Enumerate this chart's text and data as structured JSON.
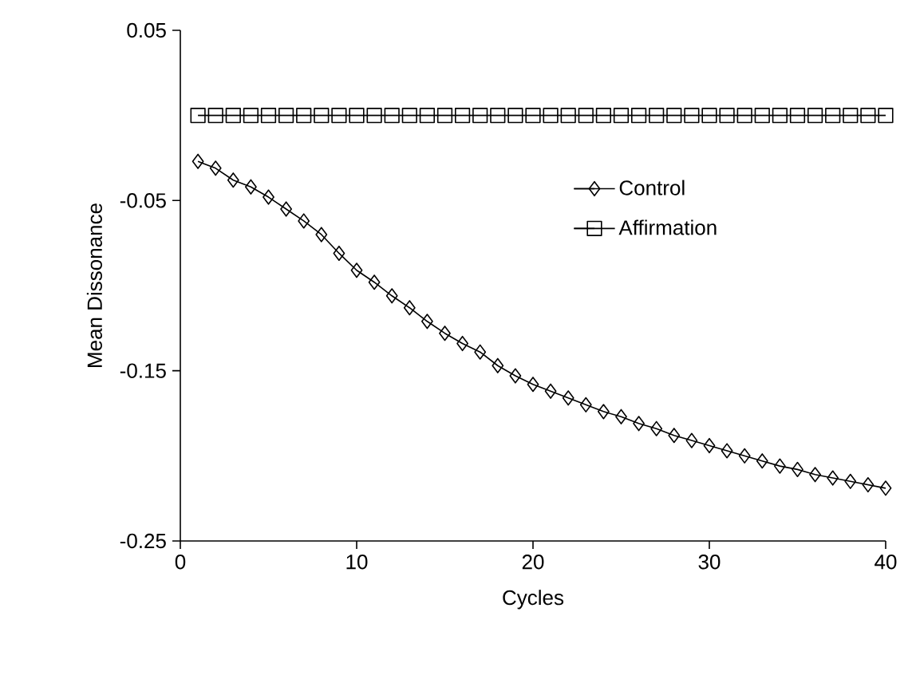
{
  "chart_data": {
    "type": "line",
    "xlabel": "Cycles",
    "ylabel": "Mean Dissonance",
    "x": [
      1,
      2,
      3,
      4,
      5,
      6,
      7,
      8,
      9,
      10,
      11,
      12,
      13,
      14,
      15,
      16,
      17,
      18,
      19,
      20,
      21,
      22,
      23,
      24,
      25,
      26,
      27,
      28,
      29,
      30,
      31,
      32,
      33,
      34,
      35,
      36,
      37,
      38,
      39,
      40
    ],
    "series": [
      {
        "name": "Control",
        "color": "#000000",
        "marker": "diamond",
        "values": [
          -0.027,
          -0.031,
          -0.038,
          -0.042,
          -0.048,
          -0.055,
          -0.062,
          -0.07,
          -0.081,
          -0.091,
          -0.098,
          -0.106,
          -0.113,
          -0.121,
          -0.128,
          -0.134,
          -0.139,
          -0.147,
          -0.153,
          -0.158,
          -0.162,
          -0.166,
          -0.17,
          -0.174,
          -0.177,
          -0.181,
          -0.184,
          -0.188,
          -0.191,
          -0.194,
          -0.197,
          -0.2,
          -0.203,
          -0.206,
          -0.208,
          -0.211,
          -0.213,
          -0.215,
          -0.217,
          -0.219
        ]
      },
      {
        "name": "Affirmation",
        "color": "#000000",
        "marker": "square",
        "values": [
          0,
          0,
          0,
          0,
          0,
          0,
          0,
          0,
          0,
          0,
          0,
          0,
          0,
          0,
          0,
          0,
          0,
          0,
          0,
          0,
          0,
          0,
          0,
          0,
          0,
          0,
          0,
          0,
          0,
          0,
          0,
          0,
          0,
          0,
          0,
          0,
          0,
          0,
          0,
          0
        ]
      }
    ],
    "xlim": [
      0,
      40
    ],
    "xticks": [
      0,
      10,
      20,
      30,
      40
    ],
    "ylim": [
      -0.25,
      0.05
    ],
    "yticks": [
      -0.25,
      -0.15,
      -0.05,
      0.05
    ],
    "grid": false,
    "legend": "right",
    "line_style": "solid"
  }
}
